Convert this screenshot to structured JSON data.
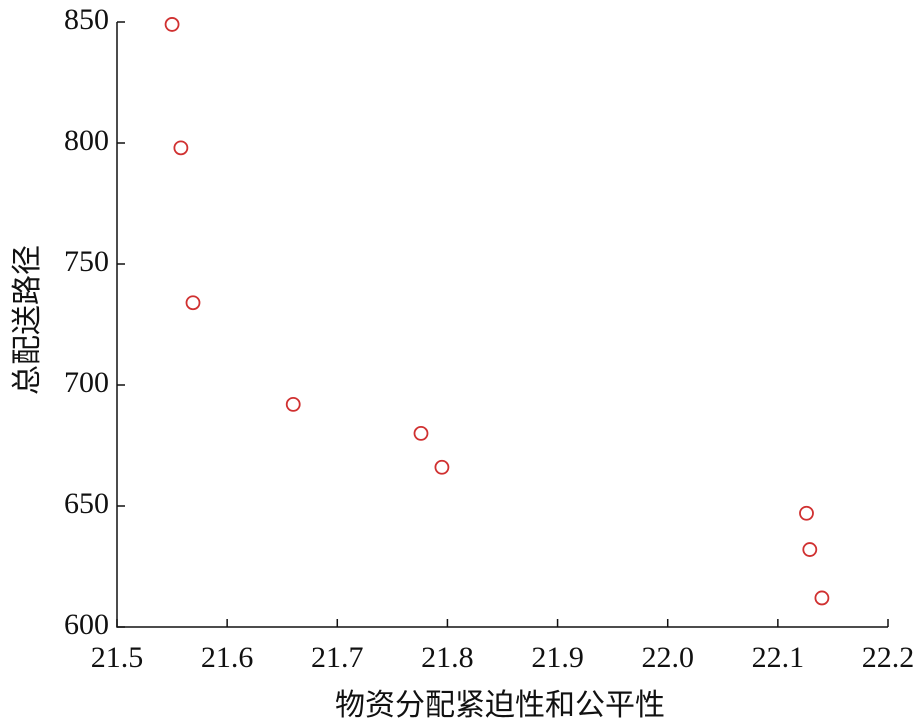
{
  "chart_data": {
    "type": "scatter",
    "xlabel": "物资分配紧迫性和公平性",
    "ylabel": "总配送路径",
    "series": [
      {
        "color": "#d03030",
        "x": [
          21.55,
          21.558,
          21.569,
          21.66,
          21.776,
          21.795,
          22.126,
          22.129,
          22.14
        ],
        "values": [
          849,
          798,
          734,
          692,
          680,
          666,
          647,
          632,
          612
        ]
      }
    ],
    "xlim": [
      21.5,
      22.2
    ],
    "xticks": [
      21.5,
      21.6,
      21.7,
      21.8,
      21.9,
      {
        "value": 22,
        "label": "22.0"
      },
      22.1,
      22.2
    ],
    "ylim": [
      600,
      850
    ],
    "yticks": [
      600,
      650,
      700,
      750,
      800,
      850
    ]
  }
}
